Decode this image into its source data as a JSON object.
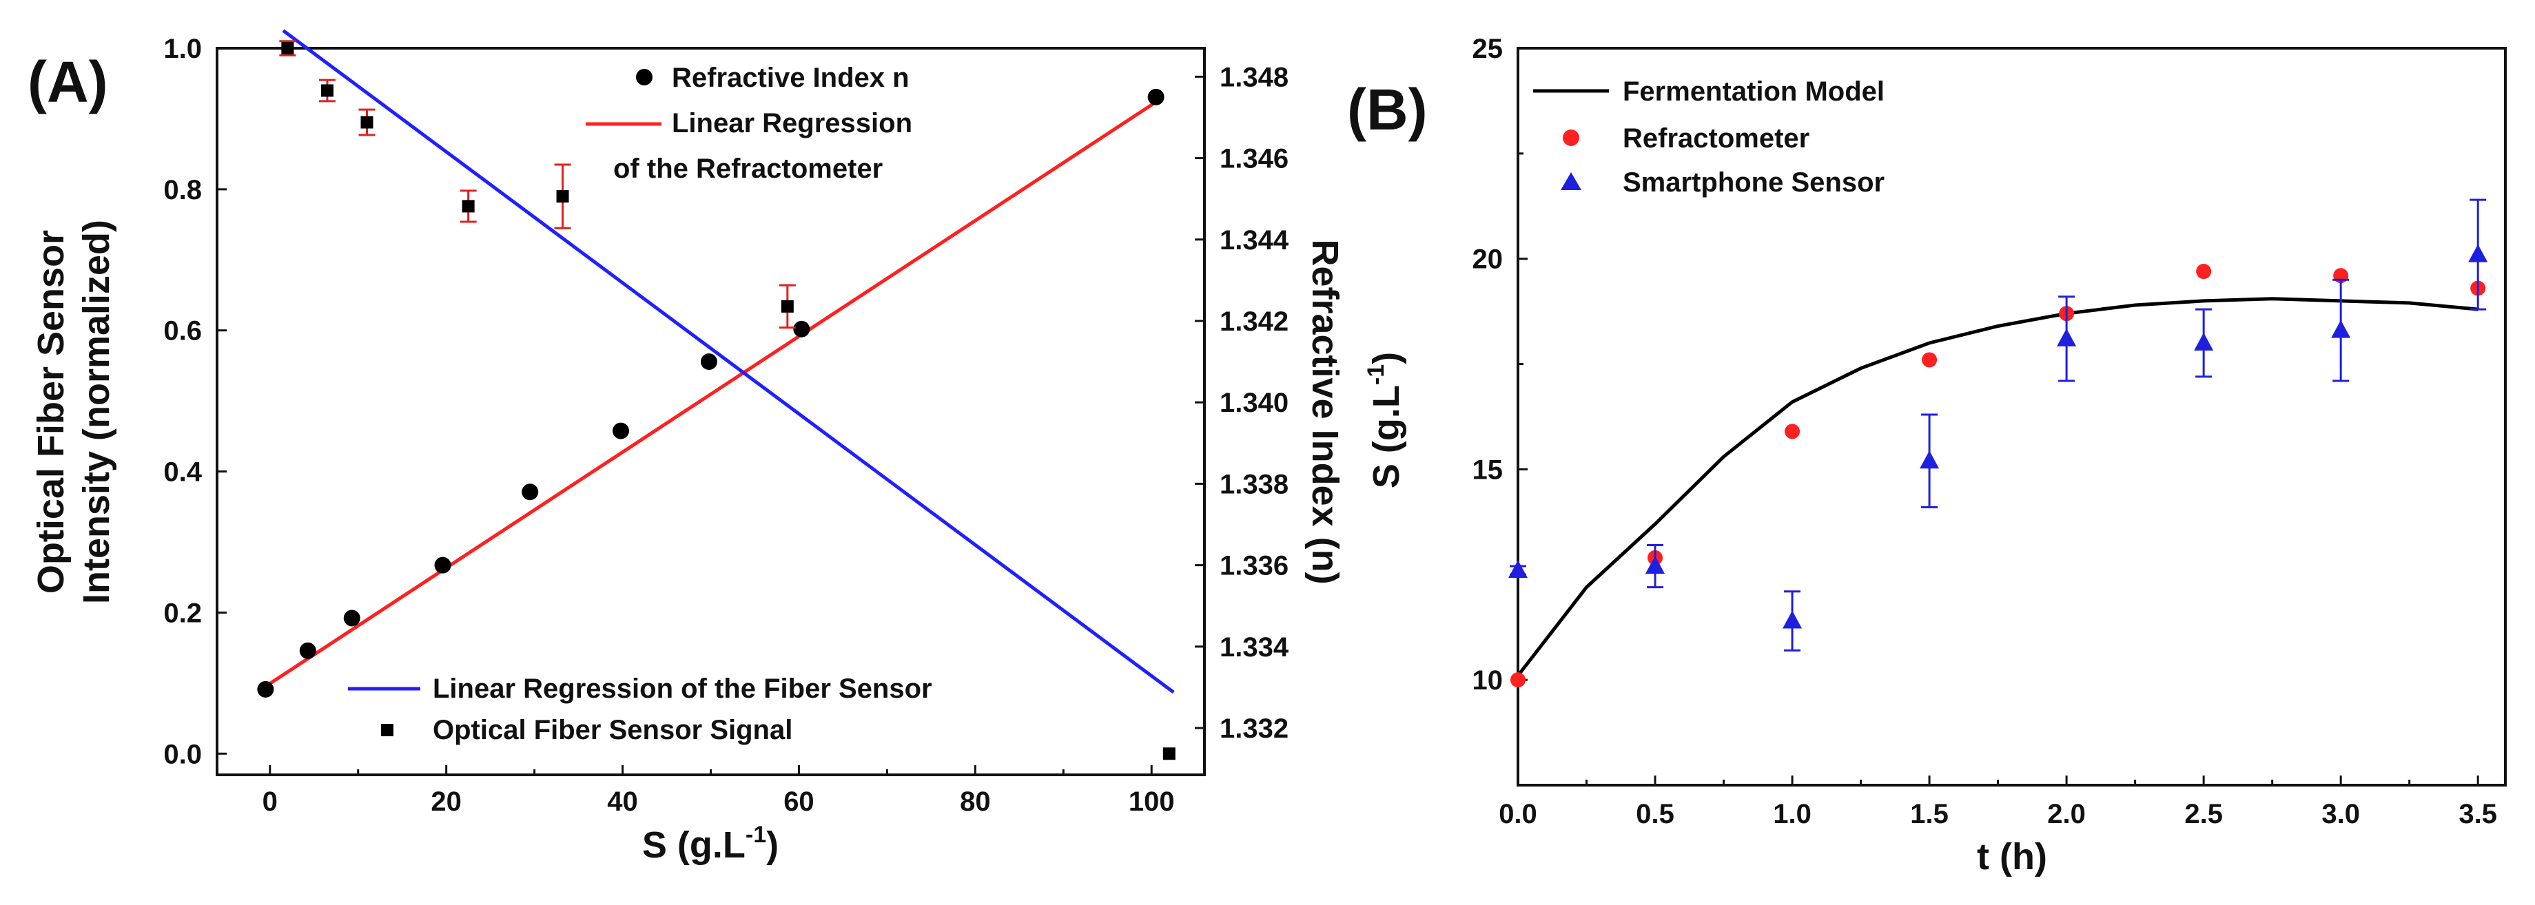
{
  "chart_data": [
    {
      "panel": "(A)",
      "type": "scatter",
      "xlabel": "S (g.L",
      "xlabel_sup": "-1",
      "xlabel_close": ")",
      "ylabel_left_line1": "Optical Fiber Sensor",
      "ylabel_left_line2": "Intensity (normalized)",
      "ylabel_right": "Refractive Index (n)",
      "xlim": [
        -6,
        106
      ],
      "ylim_left": [
        -0.03,
        1.0
      ],
      "ylim_right": [
        1.33085,
        1.3487
      ],
      "x_ticks": [
        {
          "value": 0,
          "label": "0"
        },
        {
          "value": 20,
          "label": "20"
        },
        {
          "value": 40,
          "label": "40"
        },
        {
          "value": 60,
          "label": "60"
        },
        {
          "value": 80,
          "label": "80"
        },
        {
          "value": 100,
          "label": "100"
        }
      ],
      "y_left_ticks": [
        {
          "value": 0.0,
          "label": "0.0"
        },
        {
          "value": 0.2,
          "label": "0.2"
        },
        {
          "value": 0.4,
          "label": "0.4"
        },
        {
          "value": 0.6,
          "label": "0.6"
        },
        {
          "value": 0.8,
          "label": "0.8"
        },
        {
          "value": 1.0,
          "label": "1.0"
        }
      ],
      "y_right_ticks": [
        {
          "value": 1.332,
          "label": "1.332"
        },
        {
          "value": 1.334,
          "label": "1.334"
        },
        {
          "value": 1.336,
          "label": "1.336"
        },
        {
          "value": 1.338,
          "label": "1.338"
        },
        {
          "value": 1.34,
          "label": "1.340"
        },
        {
          "value": 1.342,
          "label": "1.342"
        },
        {
          "value": 1.344,
          "label": "1.344"
        },
        {
          "value": 1.346,
          "label": "1.346"
        },
        {
          "value": 1.348,
          "label": "1.348"
        }
      ],
      "series": [
        {
          "name": "Refractive Index n",
          "axis": "right",
          "marker": "circle",
          "color": "#000000",
          "points": [
            {
              "x": -0.5,
              "y": 1.33295
            },
            {
              "x": 4.3,
              "y": 1.3339
            },
            {
              "x": 9.3,
              "y": 1.3347
            },
            {
              "x": 19.6,
              "y": 1.336
            },
            {
              "x": 29.5,
              "y": 1.3378
            },
            {
              "x": 39.8,
              "y": 1.3393
            },
            {
              "x": 49.8,
              "y": 1.341
            },
            {
              "x": 60.3,
              "y": 1.3418
            },
            {
              "x": 100.5,
              "y": 1.3475
            }
          ]
        },
        {
          "name": "Optical Fiber Sensor Signal",
          "axis": "left",
          "marker": "square",
          "color": "#000000",
          "error_color": "#e02020",
          "points": [
            {
              "x": 2.0,
              "y": 1.0,
              "err": 0.01
            },
            {
              "x": 6.5,
              "y": 0.94,
              "err": 0.015
            },
            {
              "x": 11.0,
              "y": 0.895,
              "err": 0.018
            },
            {
              "x": 22.5,
              "y": 0.776,
              "err": 0.022
            },
            {
              "x": 33.2,
              "y": 0.79,
              "err": 0.045
            },
            {
              "x": 58.7,
              "y": 0.634,
              "err": 0.03
            },
            {
              "x": 102.0,
              "y": 0.0,
              "err": 0.0
            }
          ]
        }
      ],
      "fits": [
        {
          "name": "Linear Regression of the Refractometer",
          "color": "#ff2020",
          "axis": "right",
          "x0": -1,
          "y0": 1.33295,
          "x1": 101,
          "y1": 1.34745
        },
        {
          "name": "Linear Regression of the Fiber Sensor",
          "color": "#2020ff",
          "axis": "left",
          "x0": 1.5,
          "y0": 1.025,
          "x1": 102.5,
          "y1": 0.087
        }
      ],
      "legend_top": {
        "refractive_index": "Refractive Index n",
        "lin_reg_line1": "Linear Regression",
        "lin_reg_line2": "of the Refractometer"
      },
      "legend_bottom": {
        "lin_reg_fiber": "Linear Regression of the Fiber Sensor",
        "fiber_signal": "Optical Fiber Sensor Signal"
      }
    },
    {
      "panel": "(B)",
      "type": "scatter",
      "xlabel": "t (h)",
      "ylabel": "S (g.L",
      "ylabel_sup": "-1",
      "ylabel_close": ")",
      "xlim": [
        0.0,
        3.6
      ],
      "ylim": [
        7.5,
        25.0
      ],
      "x_ticks": [
        {
          "value": 0.0,
          "label": "0.0"
        },
        {
          "value": 0.5,
          "label": "0.5"
        },
        {
          "value": 1.0,
          "label": "1.0"
        },
        {
          "value": 1.5,
          "label": "1.5"
        },
        {
          "value": 2.0,
          "label": "2.0"
        },
        {
          "value": 2.5,
          "label": "2.5"
        },
        {
          "value": 3.0,
          "label": "3.0"
        },
        {
          "value": 3.5,
          "label": "3.5"
        }
      ],
      "y_ticks": [
        {
          "value": 10,
          "label": "10"
        },
        {
          "value": 15,
          "label": "15"
        },
        {
          "value": 20,
          "label": "20"
        },
        {
          "value": 25,
          "label": "25"
        }
      ],
      "series": [
        {
          "name": "Fermentation Model",
          "kind": "line",
          "color": "#000000",
          "points": [
            {
              "x": 0.0,
              "y": 10.1
            },
            {
              "x": 0.25,
              "y": 12.2
            },
            {
              "x": 0.5,
              "y": 13.7
            },
            {
              "x": 0.75,
              "y": 15.3
            },
            {
              "x": 1.0,
              "y": 16.6
            },
            {
              "x": 1.25,
              "y": 17.4
            },
            {
              "x": 1.5,
              "y": 18.0
            },
            {
              "x": 1.75,
              "y": 18.4
            },
            {
              "x": 2.0,
              "y": 18.7
            },
            {
              "x": 2.25,
              "y": 18.9
            },
            {
              "x": 2.5,
              "y": 19.0
            },
            {
              "x": 2.75,
              "y": 19.05
            },
            {
              "x": 3.0,
              "y": 19.0
            },
            {
              "x": 3.25,
              "y": 18.95
            },
            {
              "x": 3.5,
              "y": 18.8
            }
          ]
        },
        {
          "name": "Refractometer",
          "kind": "points",
          "marker": "circle",
          "color": "#ff2020",
          "points": [
            {
              "x": 0.0,
              "y": 10.0
            },
            {
              "x": 0.5,
              "y": 12.9
            },
            {
              "x": 1.0,
              "y": 15.9
            },
            {
              "x": 1.5,
              "y": 17.6
            },
            {
              "x": 2.0,
              "y": 18.7
            },
            {
              "x": 2.5,
              "y": 19.7
            },
            {
              "x": 3.0,
              "y": 19.6
            },
            {
              "x": 3.5,
              "y": 19.3
            }
          ]
        },
        {
          "name": "Smartphone Sensor",
          "kind": "points",
          "marker": "triangle",
          "color": "#1f1fe0",
          "points": [
            {
              "x": 0.0,
              "y": 12.6,
              "err": 0.1
            },
            {
              "x": 0.5,
              "y": 12.7,
              "err": 0.5
            },
            {
              "x": 1.0,
              "y": 11.4,
              "err": 0.7
            },
            {
              "x": 1.5,
              "y": 15.2,
              "err": 1.1
            },
            {
              "x": 2.0,
              "y": 18.1,
              "err": 1.0
            },
            {
              "x": 2.5,
              "y": 18.0,
              "err": 0.8
            },
            {
              "x": 3.0,
              "y": 18.3,
              "err": 1.2
            },
            {
              "x": 3.5,
              "y": 20.1,
              "err": 1.3
            }
          ]
        }
      ],
      "legend": {
        "model": "Fermentation Model",
        "refractometer": "Refractometer",
        "smartphone": "Smartphone Sensor"
      }
    }
  ]
}
